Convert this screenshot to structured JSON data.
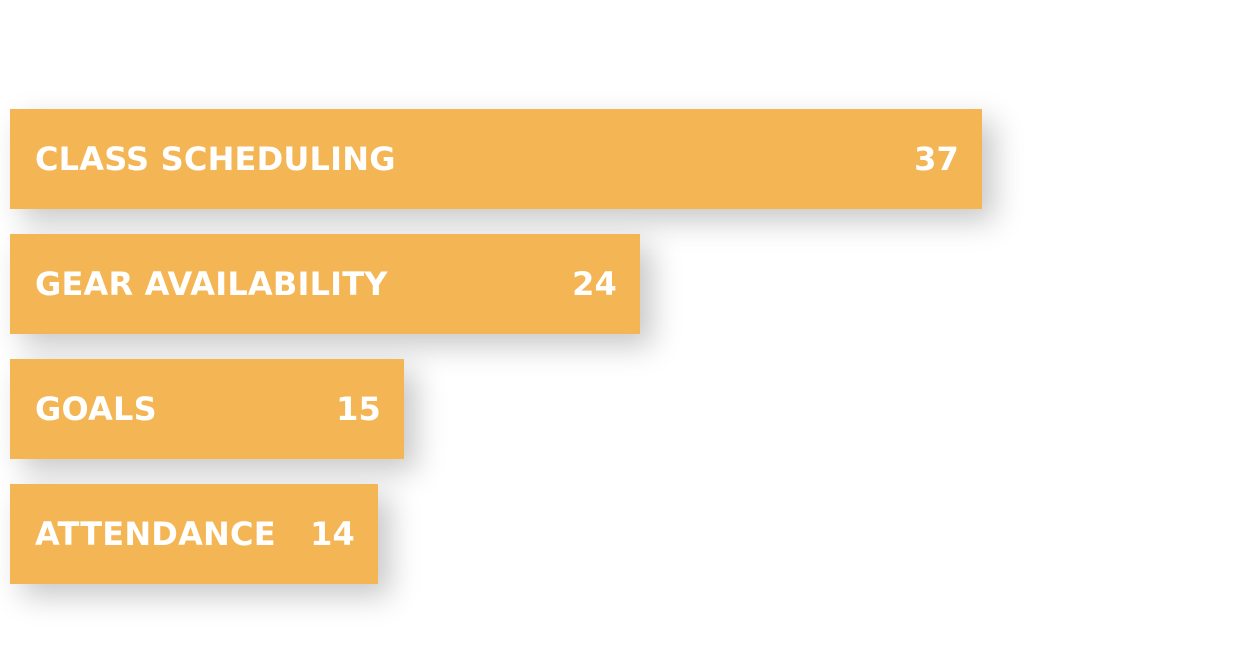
{
  "chart_data": {
    "type": "bar",
    "orientation": "horizontal",
    "categories": [
      "CLASS SCHEDULING",
      "GEAR AVAILABILITY",
      "GOALS",
      "ATTENDANCE"
    ],
    "values": [
      37,
      24,
      15,
      14
    ],
    "bar_color": "#F4B654",
    "label_color": "#FFFFFF",
    "grid": false,
    "legend": "none"
  }
}
